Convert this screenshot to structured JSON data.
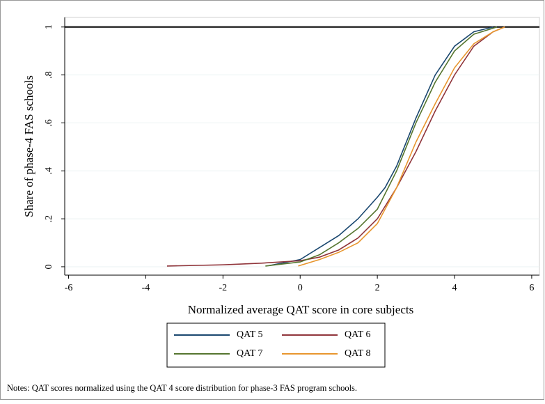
{
  "chart_data": {
    "type": "line",
    "xlabel": "Normalized average QAT  score in core subjects",
    "ylabel": "Share of phase-4 FAS schools",
    "note": "Notes: QAT scores normalized using the QAT 4 score distribution for phase-3 FAS program schools.",
    "xlim": [
      -6.1,
      6.2
    ],
    "xticks": [
      -6,
      -4,
      -2,
      0,
      2,
      4,
      6
    ],
    "ylim": [
      -0.035,
      1.04
    ],
    "yticks": [
      0,
      {
        "value": 0.2,
        "label": ".2"
      },
      {
        "value": 0.4,
        "label": ".4"
      },
      {
        "value": 0.6,
        "label": ".6"
      },
      {
        "value": 0.8,
        "label": ".8"
      },
      1
    ],
    "grid": true,
    "reference_line": 1,
    "series": [
      {
        "name": "QAT 5",
        "color": "#1a476f",
        "x": [
          -0.8,
          0,
          0.5,
          1,
          1.5,
          2,
          2.2,
          2.5,
          3,
          3.5,
          4,
          4.5,
          5
        ],
        "values": [
          0.005,
          0.03,
          0.08,
          0.13,
          0.2,
          0.29,
          0.33,
          0.42,
          0.62,
          0.8,
          0.92,
          0.98,
          1
        ]
      },
      {
        "name": "QAT 6",
        "color": "#90353b",
        "x": [
          -3.45,
          -2,
          -1,
          -0.5,
          0,
          0.5,
          1,
          1.5,
          2,
          2.5,
          3,
          3.5,
          4,
          4.5,
          5,
          5.3
        ],
        "values": [
          0.003,
          0.008,
          0.015,
          0.02,
          0.025,
          0.04,
          0.07,
          0.12,
          0.2,
          0.33,
          0.48,
          0.65,
          0.8,
          0.92,
          0.98,
          1
        ]
      },
      {
        "name": "QAT 7",
        "color": "#55752f",
        "x": [
          -0.9,
          0,
          0.5,
          1,
          1.5,
          2,
          2.5,
          3,
          3.5,
          4,
          4.5,
          5.1
        ],
        "values": [
          0.003,
          0.02,
          0.05,
          0.1,
          0.16,
          0.24,
          0.4,
          0.6,
          0.77,
          0.9,
          0.97,
          1
        ]
      },
      {
        "name": "QAT 8",
        "color": "#e8962e",
        "x": [
          -0.05,
          0.5,
          1,
          1.5,
          2,
          2.5,
          3,
          3.5,
          4,
          4.5,
          5,
          5.3
        ],
        "values": [
          0.003,
          0.03,
          0.06,
          0.1,
          0.18,
          0.33,
          0.52,
          0.68,
          0.83,
          0.93,
          0.98,
          1
        ]
      }
    ]
  }
}
